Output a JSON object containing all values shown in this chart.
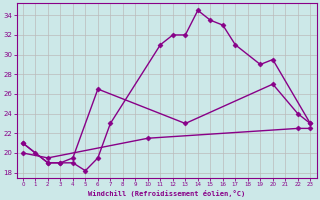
{
  "xlabel": "Windchill (Refroidissement éolien,°C)",
  "background_color": "#cce8e8",
  "grid_color": "#bbbbbb",
  "line_color": "#880088",
  "xlim": [
    -0.5,
    23.5
  ],
  "ylim": [
    17.5,
    35.2
  ],
  "yticks": [
    18,
    20,
    22,
    24,
    26,
    28,
    30,
    32,
    34
  ],
  "xticks": [
    0,
    1,
    2,
    3,
    4,
    5,
    6,
    7,
    8,
    9,
    10,
    11,
    12,
    13,
    14,
    15,
    16,
    17,
    18,
    19,
    20,
    21,
    22,
    23
  ],
  "curve1_x": [
    0,
    1,
    2,
    3,
    4,
    5,
    6,
    7,
    11,
    12,
    13,
    14,
    15,
    16,
    17,
    19,
    20,
    23
  ],
  "curve1_y": [
    21.0,
    20.0,
    19.0,
    19.0,
    19.0,
    18.2,
    19.5,
    23.0,
    31.0,
    32.0,
    32.0,
    34.5,
    33.5,
    33.0,
    31.0,
    29.0,
    29.5,
    23.0
  ],
  "curve2_x": [
    0,
    2,
    3,
    4,
    6,
    13,
    20,
    22,
    23
  ],
  "curve2_y": [
    21.0,
    19.0,
    19.0,
    19.5,
    26.5,
    23.0,
    27.0,
    24.0,
    23.0
  ],
  "curve3_x": [
    0,
    2,
    10,
    22,
    23
  ],
  "curve3_y": [
    20.0,
    19.5,
    21.5,
    22.5,
    22.5
  ],
  "marker": "D",
  "markersize": 2.5,
  "linewidth": 1.0
}
